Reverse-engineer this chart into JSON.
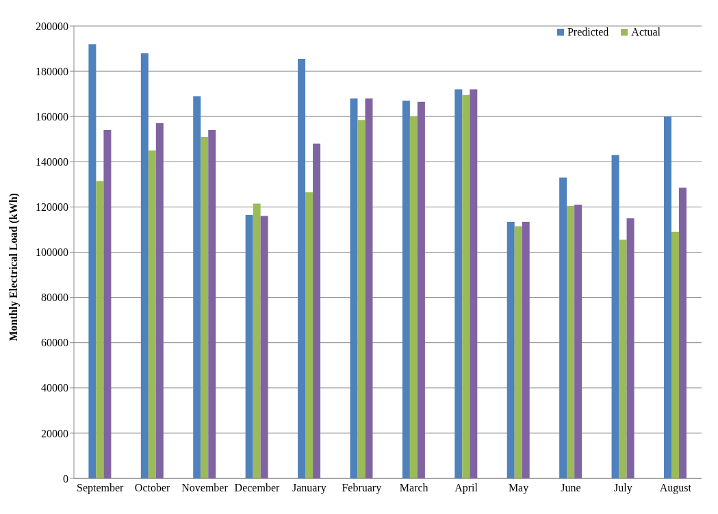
{
  "chart_data": {
    "type": "bar",
    "ylabel": "Monthly Electrical Load (kWh)",
    "categories": [
      "September",
      "October",
      "November",
      "December",
      "January",
      "February",
      "March",
      "April",
      "May",
      "June",
      "July",
      "August"
    ],
    "series": [
      {
        "name": "Predicted",
        "color": "#4f81bd",
        "values": [
          192000,
          188000,
          169000,
          116500,
          185500,
          168000,
          167000,
          172000,
          113500,
          133000,
          143000,
          160000
        ]
      },
      {
        "name": "Actual",
        "color": "#9bbb59",
        "values": [
          131500,
          145000,
          151000,
          121500,
          126500,
          158500,
          160000,
          169500,
          111500,
          120500,
          105500,
          109000
        ]
      },
      {
        "color": "#8064a2",
        "values": [
          154000,
          157000,
          154000,
          116000,
          148000,
          168000,
          166500,
          172000,
          113500,
          121000,
          115000,
          128500
        ]
      }
    ],
    "ylim": [
      0,
      200000
    ],
    "yticks": [
      0,
      20000,
      40000,
      60000,
      80000,
      100000,
      120000,
      140000,
      160000,
      180000,
      200000
    ],
    "grid": "y",
    "legend": "top right"
  }
}
